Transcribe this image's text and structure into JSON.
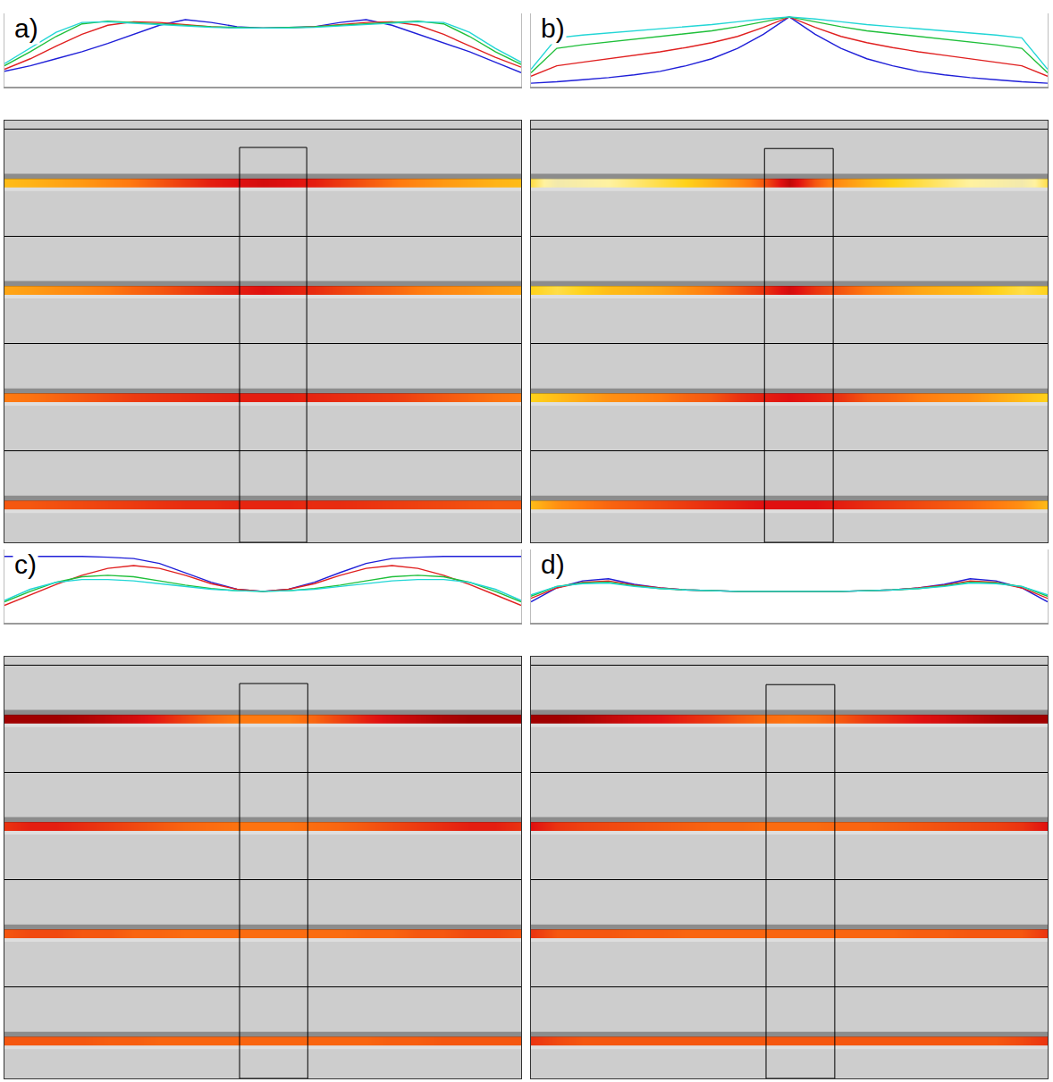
{
  "chart_data": [
    {
      "type": "line",
      "label": "a)",
      "tick_labels": false,
      "grid": false,
      "x": [
        0,
        5,
        10,
        15,
        20,
        25,
        30,
        35,
        40,
        45,
        50,
        55,
        60,
        65,
        70,
        75,
        80,
        85,
        90,
        95,
        100
      ],
      "xlim": [
        0,
        100
      ],
      "ylim": [
        0,
        1.05
      ],
      "series": [
        {
          "color": "#1f1fd8",
          "values": [
            0.22,
            0.3,
            0.4,
            0.5,
            0.62,
            0.75,
            0.88,
            0.96,
            0.92,
            0.86,
            0.84,
            0.85,
            0.86,
            0.92,
            0.96,
            0.88,
            0.75,
            0.62,
            0.5,
            0.35,
            0.2
          ]
        },
        {
          "color": "#e02020",
          "values": [
            0.25,
            0.4,
            0.58,
            0.75,
            0.88,
            0.93,
            0.92,
            0.89,
            0.86,
            0.84,
            0.84,
            0.84,
            0.86,
            0.89,
            0.92,
            0.93,
            0.88,
            0.75,
            0.58,
            0.42,
            0.28
          ]
        },
        {
          "color": "#1fbf3a",
          "values": [
            0.3,
            0.5,
            0.72,
            0.9,
            0.94,
            0.92,
            0.9,
            0.88,
            0.86,
            0.85,
            0.84,
            0.85,
            0.86,
            0.88,
            0.9,
            0.92,
            0.94,
            0.9,
            0.72,
            0.5,
            0.32
          ]
        },
        {
          "color": "#22d6d6",
          "values": [
            0.33,
            0.55,
            0.78,
            0.92,
            0.93,
            0.91,
            0.89,
            0.87,
            0.85,
            0.84,
            0.84,
            0.84,
            0.85,
            0.87,
            0.89,
            0.91,
            0.93,
            0.92,
            0.78,
            0.55,
            0.35
          ]
        }
      ]
    },
    {
      "type": "heatmap",
      "tick_labels": false,
      "grid": true,
      "x": [
        0,
        5,
        10,
        15,
        20,
        25,
        30,
        35,
        40,
        45,
        50,
        55,
        60,
        65,
        70,
        75,
        80,
        85,
        90,
        95,
        100
      ],
      "xlim": [
        0,
        100
      ],
      "ylim": [
        3.85,
        -0.08
      ],
      "yticks": [
        0,
        0.5,
        1,
        1.5,
        2,
        2.5,
        3,
        3.5
      ],
      "amplitude_range": [
        0,
        1
      ],
      "box": {
        "x": [
          45.5,
          58.5
        ],
        "y": [
          0.17,
          3.85
        ]
      },
      "reflectors": [
        {
          "depth": 0.5,
          "amplitude": [
            0.6,
            0.62,
            0.65,
            0.68,
            0.72,
            0.76,
            0.8,
            0.84,
            0.88,
            0.9,
            0.92,
            0.9,
            0.88,
            0.84,
            0.8,
            0.76,
            0.72,
            0.68,
            0.65,
            0.62,
            0.6
          ]
        },
        {
          "depth": 1.5,
          "amplitude": [
            0.65,
            0.67,
            0.7,
            0.72,
            0.75,
            0.78,
            0.8,
            0.83,
            0.86,
            0.88,
            0.9,
            0.88,
            0.86,
            0.83,
            0.8,
            0.78,
            0.75,
            0.72,
            0.7,
            0.67,
            0.65
          ]
        },
        {
          "depth": 2.5,
          "amplitude": [
            0.75,
            0.76,
            0.78,
            0.8,
            0.82,
            0.84,
            0.85,
            0.86,
            0.87,
            0.88,
            0.88,
            0.88,
            0.87,
            0.86,
            0.85,
            0.84,
            0.82,
            0.8,
            0.78,
            0.76,
            0.75
          ]
        },
        {
          "depth": 3.5,
          "amplitude": [
            0.8,
            0.8,
            0.81,
            0.82,
            0.83,
            0.84,
            0.85,
            0.86,
            0.86,
            0.87,
            0.87,
            0.87,
            0.86,
            0.86,
            0.85,
            0.84,
            0.83,
            0.82,
            0.81,
            0.8,
            0.8
          ]
        }
      ]
    },
    {
      "type": "line",
      "label": "b)",
      "tick_labels": false,
      "grid": false,
      "x": [
        0,
        5,
        10,
        15,
        20,
        25,
        30,
        35,
        40,
        45,
        50,
        55,
        60,
        65,
        70,
        75,
        80,
        85,
        90,
        95,
        100
      ],
      "xlim": [
        0,
        100
      ],
      "ylim": [
        0,
        1.05
      ],
      "series": [
        {
          "color": "#1f1fd8",
          "values": [
            0.05,
            0.07,
            0.1,
            0.13,
            0.17,
            0.22,
            0.3,
            0.4,
            0.55,
            0.75,
            1.0,
            0.75,
            0.55,
            0.4,
            0.3,
            0.22,
            0.17,
            0.13,
            0.1,
            0.07,
            0.05
          ]
        },
        {
          "color": "#e02020",
          "values": [
            0.15,
            0.3,
            0.35,
            0.4,
            0.45,
            0.5,
            0.56,
            0.63,
            0.72,
            0.85,
            1.0,
            0.85,
            0.72,
            0.63,
            0.56,
            0.5,
            0.45,
            0.4,
            0.35,
            0.3,
            0.15
          ]
        },
        {
          "color": "#1fbf3a",
          "values": [
            0.2,
            0.55,
            0.6,
            0.64,
            0.68,
            0.72,
            0.76,
            0.8,
            0.86,
            0.93,
            1.0,
            0.93,
            0.86,
            0.8,
            0.76,
            0.72,
            0.68,
            0.64,
            0.6,
            0.55,
            0.2
          ]
        },
        {
          "color": "#22d6d6",
          "values": [
            0.25,
            0.7,
            0.74,
            0.77,
            0.8,
            0.83,
            0.86,
            0.89,
            0.93,
            0.97,
            1.0,
            0.97,
            0.93,
            0.89,
            0.86,
            0.83,
            0.8,
            0.77,
            0.74,
            0.7,
            0.25
          ]
        }
      ]
    },
    {
      "type": "heatmap",
      "tick_labels": false,
      "grid": true,
      "x": [
        0,
        5,
        10,
        15,
        20,
        25,
        30,
        35,
        40,
        45,
        50,
        55,
        60,
        65,
        70,
        75,
        80,
        85,
        90,
        95,
        100
      ],
      "xlim": [
        0,
        100
      ],
      "ylim": [
        3.85,
        -0.08
      ],
      "yticks": [
        0,
        0.5,
        1,
        1.5,
        2,
        2.5,
        3,
        3.5
      ],
      "amplitude_range": [
        0,
        1
      ],
      "box": {
        "x": [
          45.2,
          58.5
        ],
        "y": [
          0.18,
          3.85
        ]
      },
      "reflectors": [
        {
          "depth": 0.5,
          "amplitude": [
            0.5,
            0.3,
            0.35,
            0.4,
            0.45,
            0.5,
            0.55,
            0.62,
            0.7,
            0.8,
            0.95,
            0.8,
            0.7,
            0.62,
            0.55,
            0.5,
            0.45,
            0.4,
            0.35,
            0.3,
            0.5
          ]
        },
        {
          "depth": 1.5,
          "amplitude": [
            0.55,
            0.5,
            0.55,
            0.6,
            0.62,
            0.65,
            0.7,
            0.75,
            0.8,
            0.85,
            0.92,
            0.85,
            0.8,
            0.75,
            0.7,
            0.65,
            0.62,
            0.6,
            0.55,
            0.5,
            0.55
          ]
        },
        {
          "depth": 2.5,
          "amplitude": [
            0.55,
            0.6,
            0.65,
            0.7,
            0.72,
            0.75,
            0.78,
            0.8,
            0.85,
            0.88,
            0.9,
            0.88,
            0.85,
            0.8,
            0.78,
            0.75,
            0.72,
            0.7,
            0.65,
            0.6,
            0.55
          ]
        },
        {
          "depth": 3.5,
          "amplitude": [
            0.6,
            0.7,
            0.75,
            0.78,
            0.8,
            0.82,
            0.84,
            0.86,
            0.88,
            0.9,
            0.9,
            0.9,
            0.88,
            0.86,
            0.84,
            0.82,
            0.8,
            0.78,
            0.75,
            0.7,
            0.6
          ]
        }
      ]
    },
    {
      "type": "line",
      "label": "c)",
      "tick_labels": false,
      "grid": false,
      "x": [
        0,
        5,
        10,
        15,
        20,
        25,
        30,
        35,
        40,
        45,
        50,
        55,
        60,
        65,
        70,
        75,
        80,
        85,
        90,
        95,
        100
      ],
      "xlim": [
        0,
        100
      ],
      "ylim": [
        0,
        1.05
      ],
      "series": [
        {
          "color": "#1f1fd8",
          "values": [
            0.95,
            0.95,
            0.95,
            0.95,
            0.94,
            0.92,
            0.85,
            0.72,
            0.58,
            0.48,
            0.45,
            0.48,
            0.58,
            0.72,
            0.85,
            0.92,
            0.94,
            0.95,
            0.95,
            0.95,
            0.95
          ]
        },
        {
          "color": "#e02020",
          "values": [
            0.25,
            0.4,
            0.55,
            0.68,
            0.78,
            0.82,
            0.78,
            0.68,
            0.56,
            0.48,
            0.45,
            0.48,
            0.56,
            0.68,
            0.78,
            0.82,
            0.78,
            0.68,
            0.55,
            0.4,
            0.25
          ]
        },
        {
          "color": "#1fbf3a",
          "values": [
            0.3,
            0.45,
            0.58,
            0.66,
            0.68,
            0.66,
            0.6,
            0.54,
            0.49,
            0.46,
            0.45,
            0.46,
            0.49,
            0.54,
            0.6,
            0.66,
            0.68,
            0.66,
            0.58,
            0.45,
            0.3
          ]
        },
        {
          "color": "#22d6d6",
          "values": [
            0.32,
            0.48,
            0.58,
            0.62,
            0.62,
            0.6,
            0.56,
            0.52,
            0.48,
            0.46,
            0.45,
            0.46,
            0.48,
            0.52,
            0.56,
            0.6,
            0.62,
            0.62,
            0.58,
            0.48,
            0.32
          ]
        }
      ]
    },
    {
      "type": "heatmap",
      "tick_labels": false,
      "grid": true,
      "x": [
        0,
        5,
        10,
        15,
        20,
        25,
        30,
        35,
        40,
        45,
        50,
        55,
        60,
        65,
        70,
        75,
        80,
        85,
        90,
        95,
        100
      ],
      "xlim": [
        0,
        100
      ],
      "ylim": [
        3.85,
        -0.08
      ],
      "yticks": [
        0,
        0.5,
        1,
        1.5,
        2,
        2.5,
        3,
        3.5
      ],
      "amplitude_range": [
        0,
        1
      ],
      "box": {
        "x": [
          45.5,
          58.7
        ],
        "y": [
          0.17,
          3.85
        ]
      },
      "reflectors": [
        {
          "depth": 0.5,
          "amplitude": [
            1,
            1,
            1,
            0.98,
            0.95,
            0.92,
            0.88,
            0.83,
            0.78,
            0.75,
            0.75,
            0.75,
            0.78,
            0.83,
            0.88,
            0.92,
            0.95,
            0.98,
            1,
            1,
            1
          ]
        },
        {
          "depth": 1.5,
          "amplitude": [
            0.85,
            0.88,
            0.88,
            0.86,
            0.84,
            0.82,
            0.8,
            0.78,
            0.77,
            0.76,
            0.76,
            0.76,
            0.77,
            0.78,
            0.8,
            0.82,
            0.84,
            0.86,
            0.88,
            0.88,
            0.85
          ]
        },
        {
          "depth": 2.5,
          "amplitude": [
            0.8,
            0.82,
            0.82,
            0.8,
            0.8,
            0.78,
            0.78,
            0.77,
            0.77,
            0.77,
            0.77,
            0.77,
            0.77,
            0.77,
            0.78,
            0.78,
            0.8,
            0.8,
            0.82,
            0.82,
            0.8
          ]
        },
        {
          "depth": 3.5,
          "amplitude": [
            0.8,
            0.8,
            0.8,
            0.8,
            0.79,
            0.79,
            0.78,
            0.78,
            0.78,
            0.78,
            0.78,
            0.78,
            0.78,
            0.78,
            0.78,
            0.79,
            0.79,
            0.8,
            0.8,
            0.8,
            0.8
          ]
        }
      ]
    },
    {
      "type": "line",
      "label": "d)",
      "tick_labels": false,
      "grid": false,
      "x": [
        0,
        5,
        10,
        15,
        20,
        25,
        30,
        35,
        40,
        45,
        50,
        55,
        60,
        65,
        70,
        75,
        80,
        85,
        90,
        95,
        100
      ],
      "xlim": [
        0,
        100
      ],
      "ylim": [
        0,
        1.05
      ],
      "series": [
        {
          "color": "#1f1fd8",
          "values": [
            0.3,
            0.5,
            0.6,
            0.63,
            0.55,
            0.5,
            0.47,
            0.46,
            0.45,
            0.45,
            0.45,
            0.45,
            0.45,
            0.46,
            0.47,
            0.5,
            0.55,
            0.63,
            0.6,
            0.5,
            0.3
          ]
        },
        {
          "color": "#e02020",
          "values": [
            0.35,
            0.5,
            0.58,
            0.6,
            0.54,
            0.5,
            0.47,
            0.46,
            0.45,
            0.45,
            0.45,
            0.45,
            0.45,
            0.46,
            0.47,
            0.5,
            0.54,
            0.6,
            0.58,
            0.5,
            0.35
          ]
        },
        {
          "color": "#1fbf3a",
          "values": [
            0.38,
            0.52,
            0.57,
            0.58,
            0.53,
            0.49,
            0.47,
            0.46,
            0.45,
            0.45,
            0.45,
            0.45,
            0.45,
            0.46,
            0.47,
            0.49,
            0.53,
            0.58,
            0.57,
            0.52,
            0.38
          ]
        },
        {
          "color": "#22d6d6",
          "values": [
            0.4,
            0.52,
            0.56,
            0.57,
            0.52,
            0.49,
            0.47,
            0.46,
            0.45,
            0.45,
            0.45,
            0.45,
            0.45,
            0.46,
            0.47,
            0.49,
            0.52,
            0.57,
            0.56,
            0.52,
            0.4
          ]
        }
      ]
    },
    {
      "type": "heatmap",
      "tick_labels": false,
      "grid": true,
      "x": [
        0,
        5,
        10,
        15,
        20,
        25,
        30,
        35,
        40,
        45,
        50,
        55,
        60,
        65,
        70,
        75,
        80,
        85,
        90,
        95,
        100
      ],
      "xlim": [
        0,
        100
      ],
      "ylim": [
        3.85,
        -0.08
      ],
      "yticks": [
        0,
        0.5,
        1,
        1.5,
        2,
        2.5,
        3,
        3.5
      ],
      "amplitude_range": [
        0,
        1
      ],
      "box": {
        "x": [
          45.5,
          58.8
        ],
        "y": [
          0.18,
          3.85
        ]
      },
      "reflectors": [
        {
          "depth": 0.5,
          "amplitude": [
            1,
            1,
            0.98,
            0.95,
            0.92,
            0.9,
            0.87,
            0.84,
            0.8,
            0.77,
            0.76,
            0.77,
            0.8,
            0.84,
            0.87,
            0.9,
            0.92,
            0.95,
            0.98,
            1,
            1
          ]
        },
        {
          "depth": 1.5,
          "amplitude": [
            0.9,
            0.85,
            0.83,
            0.82,
            0.81,
            0.8,
            0.79,
            0.78,
            0.78,
            0.77,
            0.77,
            0.77,
            0.78,
            0.78,
            0.79,
            0.8,
            0.81,
            0.82,
            0.83,
            0.85,
            0.9
          ]
        },
        {
          "depth": 2.5,
          "amplitude": [
            0.85,
            0.8,
            0.8,
            0.8,
            0.79,
            0.79,
            0.78,
            0.78,
            0.78,
            0.78,
            0.78,
            0.78,
            0.78,
            0.78,
            0.78,
            0.79,
            0.79,
            0.8,
            0.8,
            0.8,
            0.85
          ]
        },
        {
          "depth": 3.5,
          "amplitude": [
            0.85,
            0.82,
            0.8,
            0.8,
            0.8,
            0.8,
            0.8,
            0.8,
            0.8,
            0.8,
            0.8,
            0.8,
            0.8,
            0.8,
            0.8,
            0.8,
            0.8,
            0.8,
            0.8,
            0.82,
            0.85
          ]
        }
      ]
    }
  ]
}
